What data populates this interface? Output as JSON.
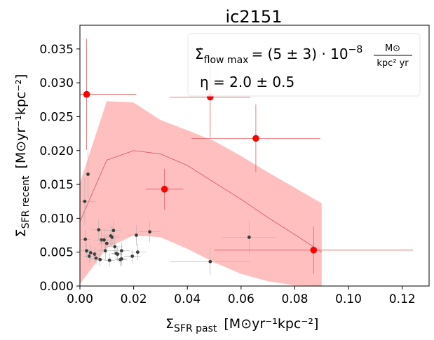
{
  "chart_data": {
    "type": "scatter",
    "title": "ic2151",
    "xlabel": {
      "main": "Σ",
      "sub": "SFR past",
      "unit": "[M⊙yr⁻¹kpc⁻²]"
    },
    "ylabel": {
      "main": "Σ",
      "sub": "SFR recent",
      "unit": "[M⊙yr⁻¹kpc⁻²]"
    },
    "xlim": [
      0.0,
      0.13
    ],
    "ylim": [
      0.0,
      0.0385
    ],
    "x_ticks": [
      0.0,
      0.02,
      0.04,
      0.06,
      0.08,
      0.1,
      0.12
    ],
    "x_tick_labels": [
      "0.00",
      "0.02",
      "0.04",
      "0.06",
      "0.08",
      "0.10",
      "0.12"
    ],
    "y_ticks": [
      0.0,
      0.005,
      0.01,
      0.015,
      0.02,
      0.025,
      0.03,
      0.035
    ],
    "y_tick_labels": [
      "0.000",
      "0.005",
      "0.010",
      "0.015",
      "0.020",
      "0.025",
      "0.030",
      "0.035"
    ],
    "annotation": {
      "flow_lhs": "Σ̇",
      "flow_sub": "flow max",
      "flow_value": "= (5 ± 3) · 10",
      "flow_exp": "−8",
      "flow_unit_num": "M⊙",
      "flow_unit_den": "kpc² yr",
      "eta": "η = 2.0 ± 0.5"
    },
    "model_band": {
      "color": "#ffbfbf",
      "x": [
        0.0,
        0.01,
        0.02,
        0.03,
        0.04,
        0.05,
        0.06,
        0.07,
        0.08,
        0.09
      ],
      "upper": [
        0.0152,
        0.0273,
        0.0271,
        0.0245,
        0.023,
        0.0214,
        0.0192,
        0.0168,
        0.0145,
        0.0122
      ],
      "lower": [
        0.0003,
        0.0056,
        0.0075,
        0.0072,
        0.0055,
        0.0035,
        0.0018,
        0.0007,
        0.0001,
        0.0
      ]
    },
    "model_line": {
      "color": "#d65f6e",
      "x": [
        0.0,
        0.01,
        0.02,
        0.03,
        0.04,
        0.05,
        0.06,
        0.07,
        0.08,
        0.09
      ],
      "y": [
        0.0095,
        0.0186,
        0.02,
        0.0195,
        0.0178,
        0.0153,
        0.0128,
        0.0101,
        0.0076,
        0.005
      ]
    },
    "red_points": {
      "color": "#ff0000",
      "errorbar_color": "#e06060",
      "points": [
        {
          "x": 0.0025,
          "y": 0.0283,
          "xerr": 0.0185,
          "yerr": 0.0082
        },
        {
          "x": 0.0315,
          "y": 0.0143,
          "xerr": 0.007,
          "yerr": 0.003
        },
        {
          "x": 0.0485,
          "y": 0.0279,
          "xerr": 0.015,
          "yerr": 0.006
        },
        {
          "x": 0.0655,
          "y": 0.0218,
          "xerr": 0.024,
          "yerr": 0.005
        },
        {
          "x": 0.087,
          "y": 0.0053,
          "xerr": 0.037,
          "yerr": 0.0035
        }
      ]
    },
    "black_points": {
      "color": "#3c3c3c",
      "errorbar_color": "#b4b4b4",
      "points": [
        {
          "x": 0.0018,
          "y": 0.0125,
          "xerr": 0.004,
          "yerr": 0.0035
        },
        {
          "x": 0.003,
          "y": 0.0165,
          "xerr": 0.001,
          "yerr": 0.0035
        },
        {
          "x": 0.002,
          "y": 0.0069,
          "xerr": 0.002,
          "yerr": 0.0015
        },
        {
          "x": 0.0025,
          "y": 0.0052,
          "xerr": 0.002,
          "yerr": 0.0012
        },
        {
          "x": 0.0035,
          "y": 0.0044,
          "xerr": 0.002,
          "yerr": 0.001
        },
        {
          "x": 0.004,
          "y": 0.0049,
          "xerr": 0.002,
          "yerr": 0.0012
        },
        {
          "x": 0.0055,
          "y": 0.0047,
          "xerr": 0.002,
          "yerr": 0.001
        },
        {
          "x": 0.006,
          "y": 0.0041,
          "xerr": 0.002,
          "yerr": 0.001
        },
        {
          "x": 0.007,
          "y": 0.0083,
          "xerr": 0.003,
          "yerr": 0.0015
        },
        {
          "x": 0.0075,
          "y": 0.0039,
          "xerr": 0.002,
          "yerr": 0.001
        },
        {
          "x": 0.008,
          "y": 0.0068,
          "xerr": 0.003,
          "yerr": 0.0015
        },
        {
          "x": 0.009,
          "y": 0.0068,
          "xerr": 0.003,
          "yerr": 0.0015
        },
        {
          "x": 0.0095,
          "y": 0.0052,
          "xerr": 0.003,
          "yerr": 0.0012
        },
        {
          "x": 0.01,
          "y": 0.0063,
          "xerr": 0.003,
          "yerr": 0.0013
        },
        {
          "x": 0.011,
          "y": 0.0038,
          "xerr": 0.002,
          "yerr": 0.001
        },
        {
          "x": 0.0115,
          "y": 0.0074,
          "xerr": 0.003,
          "yerr": 0.0015
        },
        {
          "x": 0.012,
          "y": 0.0072,
          "xerr": 0.003,
          "yerr": 0.0015
        },
        {
          "x": 0.0125,
          "y": 0.0082,
          "xerr": 0.003,
          "yerr": 0.0015
        },
        {
          "x": 0.013,
          "y": 0.0058,
          "xerr": 0.003,
          "yerr": 0.0012
        },
        {
          "x": 0.0135,
          "y": 0.0048,
          "xerr": 0.002,
          "yerr": 0.001
        },
        {
          "x": 0.014,
          "y": 0.0047,
          "xerr": 0.002,
          "yerr": 0.001
        },
        {
          "x": 0.015,
          "y": 0.0039,
          "xerr": 0.002,
          "yerr": 0.001
        },
        {
          "x": 0.0155,
          "y": 0.0052,
          "xerr": 0.003,
          "yerr": 0.0012
        },
        {
          "x": 0.0155,
          "y": 0.004,
          "xerr": 0.002,
          "yerr": 0.001
        },
        {
          "x": 0.0195,
          "y": 0.0044,
          "xerr": 0.003,
          "yerr": 0.001
        },
        {
          "x": 0.021,
          "y": 0.0075,
          "xerr": 0.003,
          "yerr": 0.0015
        },
        {
          "x": 0.0215,
          "y": 0.005,
          "xerr": 0.003,
          "yerr": 0.0012
        },
        {
          "x": 0.026,
          "y": 0.008,
          "xerr": 0.004,
          "yerr": 0.0015
        },
        {
          "x": 0.0485,
          "y": 0.0036,
          "xerr": 0.015,
          "yerr": 0.002
        },
        {
          "x": 0.063,
          "y": 0.0072,
          "xerr": 0.01,
          "yerr": 0.0024
        }
      ]
    }
  }
}
